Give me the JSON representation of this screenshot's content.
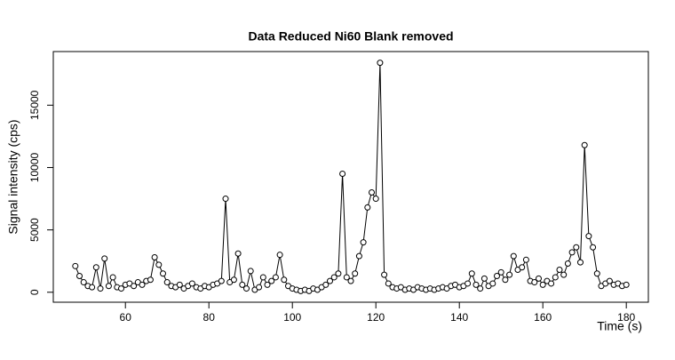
{
  "chart_data": {
    "type": "line",
    "title": "Data Reduced Ni60 Blank removed",
    "x_label": "Time (s)",
    "y_label": "Signal intensity (cps)",
    "x": [
      48,
      49,
      50,
      51,
      52,
      53,
      54,
      55,
      56,
      57,
      58,
      59,
      60,
      61,
      62,
      63,
      64,
      65,
      66,
      67,
      68,
      69,
      70,
      71,
      72,
      73,
      74,
      75,
      76,
      77,
      78,
      79,
      80,
      81,
      82,
      83,
      84,
      85,
      86,
      87,
      88,
      89,
      90,
      91,
      92,
      93,
      94,
      95,
      96,
      97,
      98,
      99,
      100,
      101,
      102,
      103,
      104,
      105,
      106,
      107,
      108,
      109,
      110,
      111,
      112,
      113,
      114,
      115,
      116,
      117,
      118,
      119,
      120,
      121,
      122,
      123,
      124,
      125,
      126,
      127,
      128,
      129,
      130,
      131,
      132,
      133,
      134,
      135,
      136,
      137,
      138,
      139,
      140,
      141,
      142,
      143,
      144,
      145,
      146,
      147,
      148,
      149,
      150,
      151,
      152,
      153,
      154,
      155,
      156,
      157,
      158,
      159,
      160,
      161,
      162,
      163,
      164,
      165,
      166,
      167,
      168,
      169,
      170,
      171,
      172,
      173,
      174,
      175,
      176,
      177,
      178,
      179,
      180
    ],
    "series": [
      {
        "color": "#000000",
        "values": [
          2100,
          1300,
          800,
          500,
          400,
          2000,
          300,
          2700,
          500,
          1200,
          400,
          300,
          600,
          700,
          500,
          800,
          600,
          900,
          1000,
          2800,
          2200,
          1500,
          800,
          500,
          400,
          600,
          300,
          500,
          700,
          400,
          300,
          500,
          400,
          600,
          700,
          900,
          7500,
          800,
          1000,
          3100,
          600,
          300,
          1700,
          200,
          400,
          1200,
          600,
          900,
          1200,
          3000,
          1000,
          500,
          300,
          200,
          100,
          200,
          100,
          300,
          200,
          400,
          600,
          900,
          1200,
          1500,
          9500,
          1200,
          900,
          1500,
          2900,
          4000,
          6800,
          8000,
          7500,
          18400,
          1400,
          700,
          400,
          300,
          400,
          200,
          300,
          200,
          400,
          300,
          200,
          300,
          200,
          300,
          400,
          300,
          500,
          600,
          400,
          500,
          700,
          1500,
          600,
          300,
          1100,
          500,
          700,
          1300,
          1600,
          1000,
          1400,
          2900,
          1800,
          2000,
          2600,
          900,
          800,
          1100,
          600,
          900,
          700,
          1200,
          1800,
          1400,
          2300,
          3200,
          3600,
          2400,
          11800,
          4500,
          3600,
          1500,
          500,
          700,
          900,
          600,
          700,
          500,
          600
        ]
      }
    ],
    "xlim": [
      42.72,
      185.28
    ],
    "ylim": [
      -800,
      19300
    ],
    "xticks": [
      60,
      80,
      100,
      120,
      140,
      160,
      180
    ],
    "yticks": [
      0,
      5000,
      10000,
      15000
    ]
  }
}
